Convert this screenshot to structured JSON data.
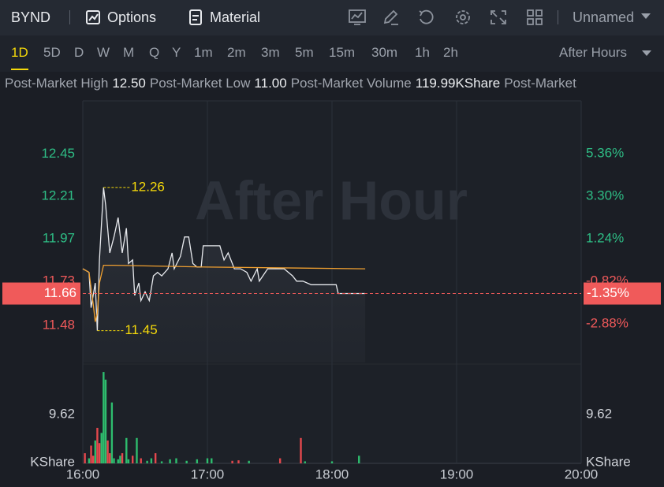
{
  "header": {
    "symbol": "BYND",
    "tabs": [
      "Options",
      "Material"
    ],
    "layout": "Unnamed"
  },
  "timeframes": {
    "items": [
      "1D",
      "5D",
      "D",
      "W",
      "M",
      "Q",
      "Y",
      "1m",
      "2m",
      "3m",
      "5m",
      "15m",
      "30m",
      "1h",
      "2h"
    ],
    "active": 0,
    "session": "After Hours"
  },
  "stats": [
    {
      "label": "Post-Market High",
      "value": "12.50"
    },
    {
      "label": "Post-Market Low",
      "value": "11.00"
    },
    {
      "label": "Post-Market Volume",
      "value": "119.99KShare"
    },
    {
      "label": "Post-Market"
    }
  ],
  "chart_data": {
    "type": "line",
    "watermark": "After Hour",
    "xlim": [
      "16:00",
      "20:00"
    ],
    "xticks": [
      "16:00",
      "17:00",
      "18:00",
      "19:00",
      "20:00"
    ],
    "ylim": [
      11.27,
      12.75
    ],
    "yticks": [
      12.45,
      12.21,
      11.97,
      11.73,
      11.48
    ],
    "y2lim": [
      -4.75,
      7.92
    ],
    "y2ticks": [
      {
        "value": 5.36,
        "label": "5.36%"
      },
      {
        "value": 3.3,
        "label": "3.30%"
      },
      {
        "value": 1.24,
        "label": "1.24%"
      },
      {
        "value": -0.82,
        "label": "-0.82%"
      },
      {
        "value": -2.88,
        "label": "-2.88%"
      }
    ],
    "up_color": "#2ebd85",
    "down_color": "#f0595a",
    "grid": true,
    "series": [
      {
        "color": "#e8eaee",
        "x": [
          "16:00",
          "16:03",
          "16:04",
          "16:06",
          "16:07",
          "16:08",
          "16:10",
          "16:11",
          "16:13",
          "16:15",
          "16:17",
          "16:19",
          "16:21",
          "16:22",
          "16:24",
          "16:25",
          "16:27",
          "16:28",
          "16:30",
          "16:32",
          "16:34",
          "16:36",
          "16:38",
          "16:41",
          "16:43",
          "16:44",
          "16:47",
          "16:49",
          "16:51",
          "16:53",
          "16:55",
          "16:57",
          "16:58",
          "17:06",
          "17:08",
          "17:10",
          "17:13",
          "17:16",
          "17:19",
          "17:21",
          "17:24",
          "17:25",
          "17:29",
          "17:37",
          "17:41",
          "17:43",
          "17:46",
          "17:50",
          "18:02",
          "18:03",
          "18:16"
        ],
        "values": [
          11.8,
          11.78,
          11.58,
          11.72,
          11.45,
          11.85,
          12.26,
          12.16,
          11.89,
          11.98,
          12.09,
          11.89,
          12.03,
          11.83,
          11.85,
          11.65,
          11.72,
          11.62,
          11.67,
          11.62,
          11.76,
          11.78,
          11.76,
          11.8,
          11.89,
          11.8,
          11.87,
          11.98,
          11.98,
          11.83,
          11.81,
          11.81,
          11.93,
          11.93,
          11.85,
          11.89,
          11.8,
          11.8,
          11.78,
          11.73,
          11.8,
          11.73,
          11.8,
          11.8,
          11.76,
          11.73,
          11.73,
          11.71,
          11.71,
          11.66,
          11.66
        ]
      },
      {
        "color": "#f0a030",
        "x": [
          "16:00",
          "16:03",
          "16:05",
          "16:06",
          "16:07",
          "16:08",
          "16:10",
          "16:15",
          "17:00",
          "18:16"
        ],
        "values": [
          11.8,
          11.78,
          11.6,
          11.5,
          11.55,
          11.72,
          11.82,
          11.82,
          11.81,
          11.8
        ]
      }
    ],
    "annotations": [
      {
        "x": "16:10",
        "value": 12.26,
        "color": "#f5d90a"
      },
      {
        "x": "16:07",
        "value": 11.45,
        "color": "#f5d90a"
      }
    ],
    "current": {
      "value": 11.66,
      "change": {
        "value": -1.35,
        "label": "-1.35%"
      },
      "color": "#f05a5a"
    },
    "volume": {
      "unit": "KShare",
      "ylim": [
        0,
        19.1
      ],
      "yticks": [
        9.62
      ],
      "x": [
        "16:01",
        "16:03",
        "16:04",
        "16:05",
        "16:06",
        "16:07",
        "16:08",
        "16:09",
        "16:10",
        "16:11",
        "16:12",
        "16:13",
        "16:14",
        "16:15",
        "16:17",
        "16:18",
        "16:19",
        "16:21",
        "16:22",
        "16:24",
        "16:26",
        "16:28",
        "16:31",
        "16:33",
        "16:35",
        "16:38",
        "16:42",
        "16:45",
        "16:50",
        "16:55",
        "17:00",
        "17:02",
        "17:12",
        "17:15",
        "17:20",
        "17:35",
        "17:45",
        "17:47",
        "18:00",
        "18:13"
      ],
      "values": [
        2.0,
        1.0,
        3.5,
        1.5,
        4.5,
        7.0,
        4.0,
        6.0,
        18.0,
        16.5,
        4.5,
        2.0,
        12.0,
        1.0,
        0.8,
        1.5,
        2.0,
        5.0,
        0.8,
        1.5,
        5.0,
        1.0,
        0.5,
        1.0,
        2.0,
        0.4,
        0.8,
        1.0,
        0.5,
        0.8,
        1.0,
        1.0,
        0.5,
        0.6,
        0.5,
        1.0,
        5.0,
        0.4,
        0.4,
        1.5
      ],
      "colors": [
        "#e5484d",
        "#2ebd6e",
        "#e5484d",
        "#e5484d",
        "#2ebd6e",
        "#e5484d",
        "#e5484d",
        "#2ebd6e",
        "#2ebd6e",
        "#2ebd6e",
        "#e5484d",
        "#e5484d",
        "#2ebd6e",
        "#2ebd6e",
        "#2ebd6e",
        "#2ebd6e",
        "#e5484d",
        "#2ebd6e",
        "#2ebd6e",
        "#e5484d",
        "#2ebd6e",
        "#e5484d",
        "#2ebd6e",
        "#2ebd6e",
        "#e5484d",
        "#2ebd6e",
        "#2ebd6e",
        "#2ebd6e",
        "#2ebd6e",
        "#2ebd6e",
        "#2ebd6e",
        "#2ebd6e",
        "#e5484d",
        "#e5484d",
        "#2ebd6e",
        "#e5484d",
        "#e5484d",
        "#2ebd6e",
        "#2ebd6e",
        "#2ebd6e"
      ]
    }
  }
}
